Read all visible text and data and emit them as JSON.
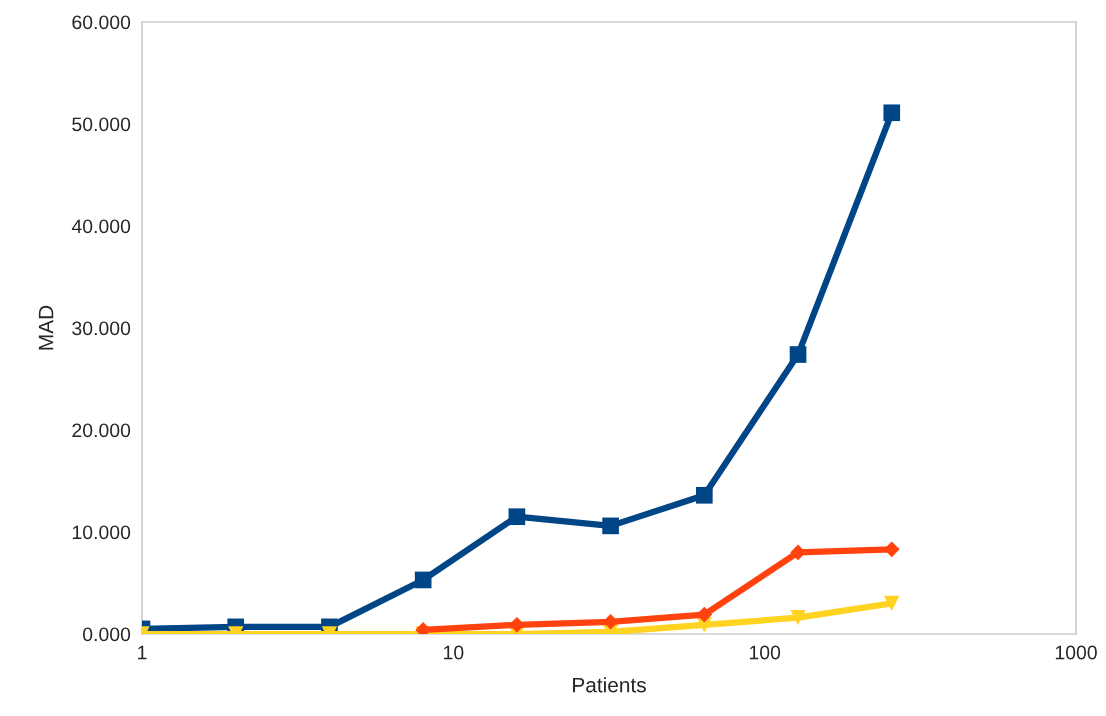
{
  "chart_data": {
    "type": "line",
    "xlabel": "Patients",
    "ylabel": "MAD",
    "log": "x",
    "grid": false,
    "x": [
      1,
      2,
      4,
      8,
      16,
      32,
      64,
      128,
      256
    ],
    "xlim": [
      1,
      1000
    ],
    "xticks": [
      1,
      10,
      100,
      1000
    ],
    "ylim": [
      0,
      60
    ],
    "yticks": [
      {
        "value": 0,
        "label": "0.000"
      },
      {
        "value": 10,
        "label": "10.000"
      },
      {
        "value": 20,
        "label": "20.000"
      },
      {
        "value": 30,
        "label": "30.000"
      },
      {
        "value": 40,
        "label": "40.000"
      },
      {
        "value": 50,
        "label": "50.000"
      },
      {
        "value": 60,
        "label": "60.000"
      }
    ],
    "series": [
      {
        "color": "#004586",
        "marker": "square",
        "values": [
          0.5,
          0.7,
          0.7,
          5.3,
          11.5,
          10.6,
          13.6,
          27.4,
          51.1
        ]
      },
      {
        "color": "#ffd320",
        "marker": "triangle",
        "values": [
          0,
          0,
          0,
          0,
          0,
          0.2,
          0.9,
          1.6,
          3.0
        ]
      },
      {
        "color": "#ff420e",
        "marker": "diamond",
        "values": [
          null,
          null,
          null,
          0.4,
          0.9,
          1.2,
          1.9,
          8.0,
          8.3
        ]
      }
    ]
  }
}
